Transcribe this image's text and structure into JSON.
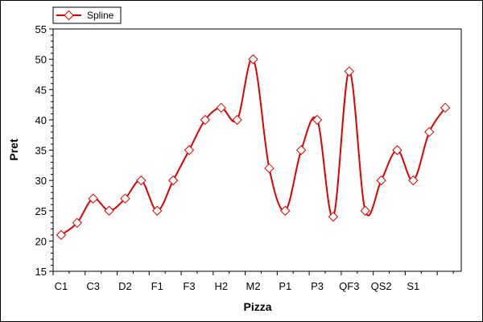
{
  "chart_data": {
    "type": "line",
    "title": "",
    "xlabel": "Pizza",
    "ylabel": "Pret",
    "ylim": [
      15,
      55
    ],
    "y_ticks": [
      15,
      20,
      25,
      30,
      35,
      40,
      45,
      50,
      55
    ],
    "x_tick_labels": [
      "C1",
      "C3",
      "D2",
      "F1",
      "F3",
      "H2",
      "M2",
      "P1",
      "P3",
      "QF3",
      "QS2",
      "S1"
    ],
    "grid": false,
    "smooth": true,
    "legend": {
      "position": "top-left",
      "entries": [
        "Spline"
      ]
    },
    "series": [
      {
        "name": "Spline",
        "color": "#e00000",
        "marker": "diamond",
        "marker_fill": "#ffffff",
        "values": [
          21,
          23,
          27,
          25,
          27,
          30,
          25,
          30,
          35,
          40,
          42,
          40,
          50,
          32,
          25,
          35,
          40,
          24,
          48,
          25,
          30,
          35,
          30,
          38,
          42
        ]
      }
    ]
  }
}
